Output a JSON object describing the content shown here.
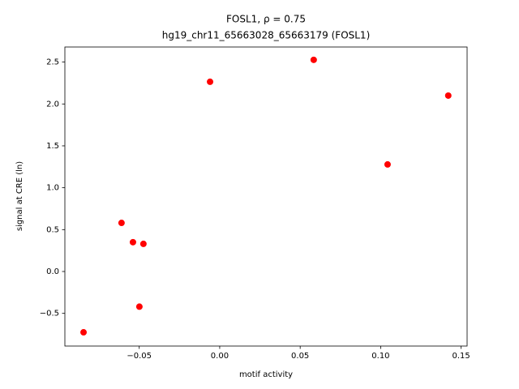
{
  "chart_data": {
    "type": "scatter",
    "title": "FOSL1, ρ = 0.75",
    "subtitle": "hg19_chr11_65663028_65663179 (FOSL1)",
    "x_label": "motif activity",
    "y_label": "signal at CRE (ln)",
    "color": "#ff0000",
    "x": [
      -0.0846,
      -0.061,
      -0.0539,
      -0.0474,
      -0.0499,
      -0.006,
      0.0584,
      0.1043,
      0.142
    ],
    "values": [
      -0.726,
      0.58,
      0.35,
      0.33,
      -0.42,
      2.265,
      2.527,
      1.278,
      2.1
    ],
    "xlim": [
      -0.0962,
      0.1537
    ],
    "ylim": [
      -0.89,
      2.68
    ],
    "xticks": [
      {
        "value": -0.05,
        "label": "−0.05"
      },
      {
        "value": 0,
        "label": "0.00"
      },
      {
        "value": 0.05,
        "label": "0.05"
      },
      {
        "value": 0.1,
        "label": "0.10"
      },
      {
        "value": 0.15,
        "label": "0.15"
      }
    ],
    "yticks": [
      {
        "value": -0.5,
        "label": "−0.5"
      },
      {
        "value": 0,
        "label": "0.0"
      },
      0.5,
      {
        "value": 1,
        "label": "1.0"
      },
      1.5,
      {
        "value": 2,
        "label": "2.0"
      },
      2.5
    ],
    "grid": false
  }
}
